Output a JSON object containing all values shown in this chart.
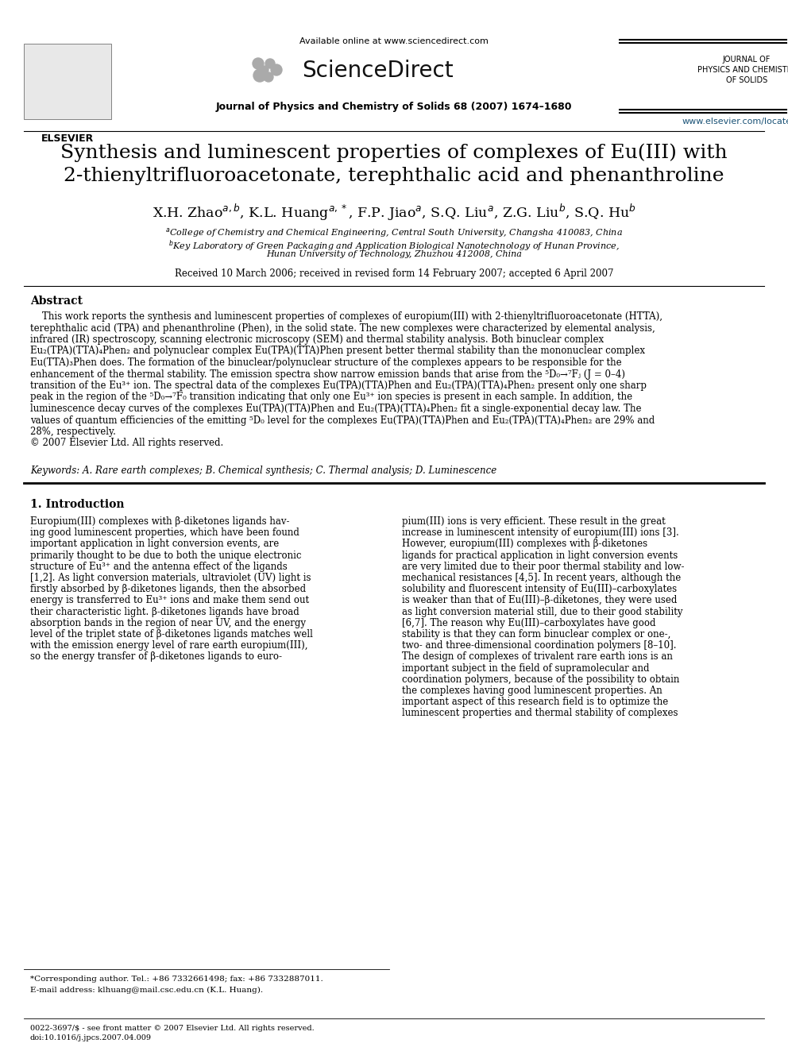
{
  "background_color": "#ffffff",
  "page_width": 9.92,
  "page_height": 13.23,
  "header": {
    "available_online": "Available online at www.sciencedirect.com",
    "sciencedirect_text": "ScienceDirect",
    "journal_name_header": "JOURNAL OF\nPHYSICS AND CHEMISTRY\nOF SOLIDS",
    "journal_ref": "Journal of Physics and Chemistry of Solids 68 (2007) 1674–1680",
    "website": "www.elsevier.com/locate/jpcs"
  },
  "title": "Synthesis and luminescent properties of complexes of Eu(III) with\n2-thienyltrifluoroacetonate, terephthalic acid and phenanthroline",
  "authors_latex": "X.H. Zhao$^{a,b}$, K.L. Huang$^{a,*}$, F.P. Jiao$^{a}$, S.Q. Liu$^{a}$, Z.G. Liu$^{b}$, S.Q. Hu$^{b}$",
  "affiliation_a": "$^{a}$College of Chemistry and Chemical Engineering, Central South University, Changsha 410083, China",
  "affiliation_b1": "$^{b}$Key Laboratory of Green Packaging and Application Biological Nanotechnology of Hunan Province,",
  "affiliation_b2": "Hunan University of Technology, Zhuzhou 412008, China",
  "received": "Received 10 March 2006; received in revised form 14 February 2007; accepted 6 April 2007",
  "abstract_title": "Abstract",
  "keywords": "Keywords: A. Rare earth complexes; B. Chemical synthesis; C. Thermal analysis; D. Luminescence",
  "section1_title": "1. Introduction",
  "footnote1": "*Corresponding author. Tel.: +86 7332661498; fax: +86 7332887011.",
  "footnote2": "E-mail address: klhuang@mail.csc.edu.cn (K.L. Huang).",
  "footer1": "0022-3697/$ - see front matter © 2007 Elsevier Ltd. All rights reserved.",
  "footer2": "doi:10.1016/j.jpcs.2007.04.009",
  "abstract_lines": [
    "    This work reports the synthesis and luminescent properties of complexes of europium(III) with 2-thienyltrifluoroacetonate (HTTA),",
    "terephthalic acid (TPA) and phenanthroline (Phen), in the solid state. The new complexes were characterized by elemental analysis,",
    "infrared (IR) spectroscopy, scanning electronic microscopy (SEM) and thermal stability analysis. Both binuclear complex",
    "Eu₂(TPA)(TTA)₄Phen₂ and polynuclear complex Eu(TPA)(TTA)Phen present better thermal stability than the mononuclear complex",
    "Eu(TTA)₃Phen does. The formation of the binuclear/polynuclear structure of the complexes appears to be responsible for the",
    "enhancement of the thermal stability. The emission spectra show narrow emission bands that arise from the ⁵D₀→⁷Fⱼ (J = 0–4)",
    "transition of the Eu³⁺ ion. The spectral data of the complexes Eu(TPA)(TTA)Phen and Eu₂(TPA)(TTA)₄Phen₂ present only one sharp",
    "peak in the region of the ⁵D₀→⁷F₀ transition indicating that only one Eu³⁺ ion species is present in each sample. In addition, the",
    "luminescence decay curves of the complexes Eu(TPA)(TTA)Phen and Eu₂(TPA)(TTA)₄Phen₂ fit a single-exponential decay law. The",
    "values of quantum efficiencies of the emitting ⁵D₀ level for the complexes Eu(TPA)(TTA)Phen and Eu₂(TPA)(TTA)₄Phen₂ are 29% and",
    "28%, respectively.",
    "© 2007 Elsevier Ltd. All rights reserved."
  ],
  "intro_left_lines": [
    "Europium(III) complexes with β-diketones ligands hav-",
    "ing good luminescent properties, which have been found",
    "important application in light conversion events, are",
    "primarily thought to be due to both the unique electronic",
    "structure of Eu³⁺ and the antenna effect of the ligands",
    "[1,2]. As light conversion materials, ultraviolet (UV) light is",
    "firstly absorbed by β-diketones ligands, then the absorbed",
    "energy is transferred to Eu³⁺ ions and make them send out",
    "their characteristic light. β-diketones ligands have broad",
    "absorption bands in the region of near UV, and the energy",
    "level of the triplet state of β-diketones ligands matches well",
    "with the emission energy level of rare earth europium(III),",
    "so the energy transfer of β-diketones ligands to euro-"
  ],
  "intro_right_lines": [
    "pium(III) ions is very efficient. These result in the great",
    "increase in luminescent intensity of europium(III) ions [3].",
    "However, europium(III) complexes with β-diketones",
    "ligands for practical application in light conversion events",
    "are very limited due to their poor thermal stability and low-",
    "mechanical resistances [4,5]. In recent years, although the",
    "solubility and fluorescent intensity of Eu(III)–carboxylates",
    "is weaker than that of Eu(III)–β-diketones, they were used",
    "as light conversion material still, due to their good stability",
    "[6,7]. The reason why Eu(III)–carboxylates have good",
    "stability is that they can form binuclear complex or one-,",
    "two- and three-dimensional coordination polymers [8–10].",
    "The design of complexes of trivalent rare earth ions is an",
    "important subject in the field of supramolecular and",
    "coordination polymers, because of the possibility to obtain",
    "the complexes having good luminescent properties. An",
    "important aspect of this research field is to optimize the",
    "luminescent properties and thermal stability of complexes"
  ]
}
